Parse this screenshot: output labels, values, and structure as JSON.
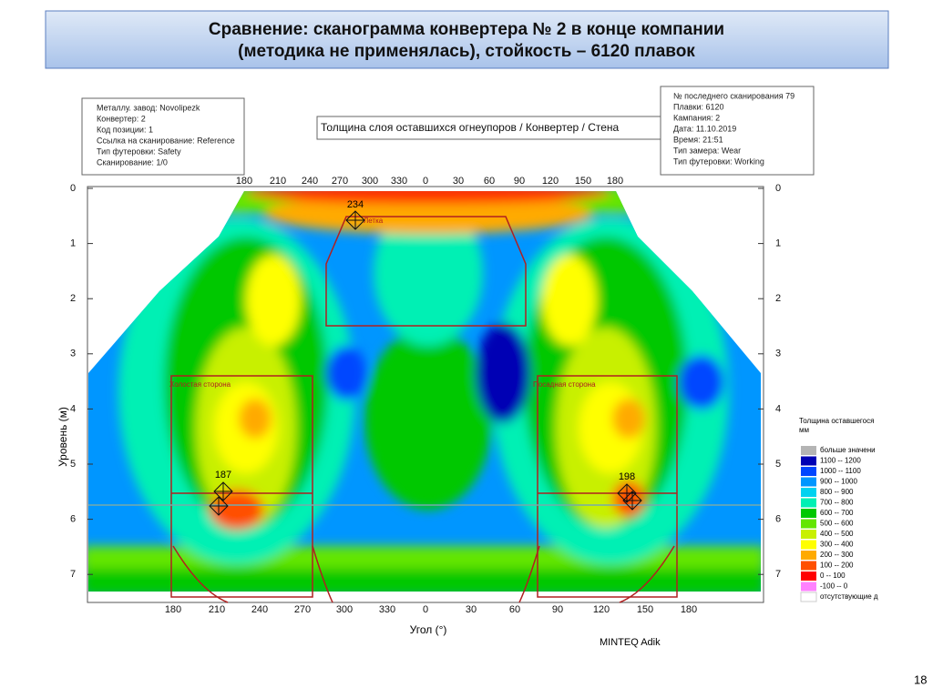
{
  "title": [
    "Сравнение: сканограмма конвертера № 2 в конце компании",
    "(методика не применялась), стойкость – 6120 плавок"
  ],
  "info_left": [
    "Металлу. завод: Novolipezk",
    "Конвертер: 2",
    "Код позиции: 1",
    "Ссылка на сканирование: Reference",
    "Тип футеровки: Safety",
    "Сканирование: 1/0"
  ],
  "scan_title": "Толщина слоя оставшихся огнеупоров / Конвертер / Стена",
  "info_right": [
    "№ последнего сканирования 79",
    "Плавки: 6120",
    "Кампания: 2",
    "Дата: 11.10.2019",
    "Время: 21:51",
    "Тип замера: Wear",
    "Тип футеровки: Working"
  ],
  "axes": {
    "top_x": [
      180,
      210,
      240,
      270,
      300,
      330,
      0,
      30,
      60,
      90,
      120,
      150,
      180
    ],
    "bottom_x": [
      180,
      210,
      240,
      270,
      300,
      330,
      0,
      30,
      60,
      90,
      120,
      150,
      180
    ],
    "y_left": [
      0,
      1,
      2,
      3,
      4,
      5,
      6,
      7
    ],
    "y_right": [
      0,
      1,
      2,
      3,
      4,
      5,
      6,
      7
    ],
    "y_label": "Уровень (м)",
    "x_label": "Угол (°)"
  },
  "annotations": {
    "tap_value": "234",
    "tap_label": "Летка",
    "left_value": "187",
    "right_value": "198",
    "left_side": "Холостая сторона",
    "right_side": "Посадная сторона"
  },
  "legend": {
    "title": [
      "Толщина оставшегося",
      "мм"
    ],
    "items": [
      {
        "label": "больше значени",
        "color": "#b4b4b4"
      },
      {
        "label": "1100 -- 1200",
        "color": "#0000b4"
      },
      {
        "label": "1000 -- 1100",
        "color": "#0046ff"
      },
      {
        "label": "900 -- 1000",
        "color": "#0096ff"
      },
      {
        "label": "800 -- 900",
        "color": "#00d2f0"
      },
      {
        "label": "700 -- 800",
        "color": "#00f0b4"
      },
      {
        "label": "600 -- 700",
        "color": "#00c800"
      },
      {
        "label": "500 -- 600",
        "color": "#64e600"
      },
      {
        "label": "400 -- 500",
        "color": "#c8f000"
      },
      {
        "label": "300 -- 400",
        "color": "#ffff00"
      },
      {
        "label": "200 -- 300",
        "color": "#ffaa00"
      },
      {
        "label": "100 -- 200",
        "color": "#ff5000"
      },
      {
        "label": "0 -- 100",
        "color": "#ff0000"
      },
      {
        "label": "-100 -- 0",
        "color": "#ff82ff"
      },
      {
        "label": "отсутствующие д",
        "color": "#ffffff"
      }
    ]
  },
  "credit": "MINTEQ Adik",
  "page_number": "18"
}
